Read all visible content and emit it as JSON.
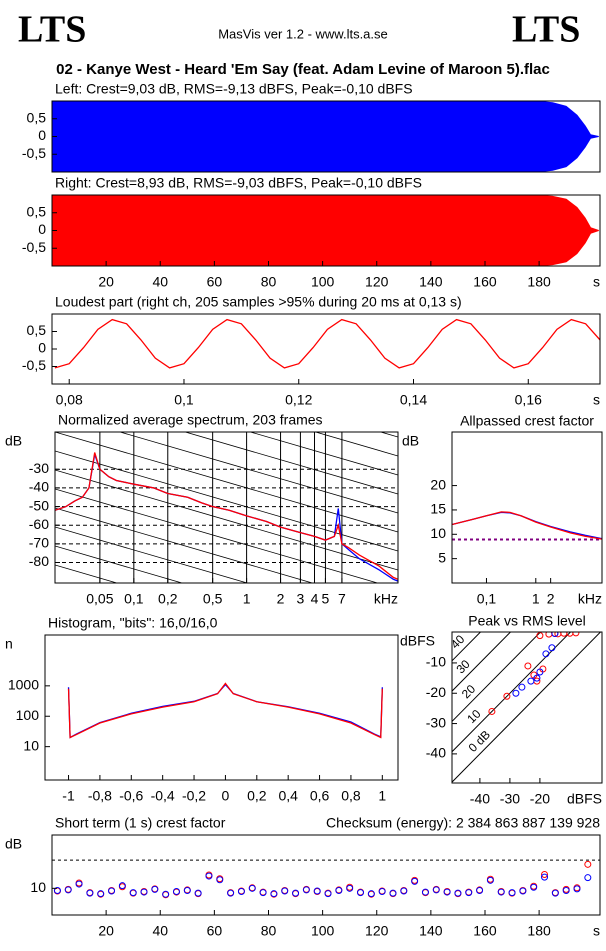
{
  "header": {
    "left_logo": "LTS",
    "right_logo": "LTS",
    "app": "MasVis ver 1.2 - www.lts.a.se",
    "file": "02 - Kanye West - Heard 'Em Say (feat. Adam Levine of Maroon 5).flac"
  },
  "chart_data": [
    {
      "type": "area",
      "title": "Left: Crest=9,03 dB, RMS=-9,13 dBFS, Peak=-0,10 dBFS",
      "x": [
        0,
        180,
        185,
        190,
        194,
        197,
        199,
        202
      ],
      "series": [
        {
          "color": "#0000ff",
          "values": [
            0.99,
            0.99,
            0.95,
            0.85,
            0.6,
            0.3,
            0.05,
            0
          ]
        }
      ],
      "xlim": [
        0,
        202.5
      ],
      "ylim": [
        -1,
        1
      ],
      "yticks": [
        {
          "value": 0.5,
          "label": "0,5"
        },
        0,
        {
          "value": -0.5,
          "label": "-0,5"
        }
      ]
    },
    {
      "type": "area",
      "title": "Right: Crest=8,93 dB, RMS=-9,03 dBFS, Peak=-0,10 dBFS",
      "x": [
        0,
        180,
        185,
        190,
        194,
        197,
        199,
        202
      ],
      "series": [
        {
          "color": "#ff0000",
          "values": [
            0.99,
            0.99,
            0.96,
            0.88,
            0.65,
            0.35,
            0.08,
            0
          ]
        }
      ],
      "xlim": [
        0,
        202.5
      ],
      "ylim": [
        -1,
        1
      ],
      "yticks": [
        {
          "value": 0.5,
          "label": "0,5"
        },
        0,
        {
          "value": -0.5,
          "label": "-0,5"
        }
      ],
      "xticks": [
        20,
        40,
        60,
        80,
        100,
        120,
        140,
        160,
        180
      ],
      "x_unit": "s"
    },
    {
      "type": "line",
      "title": "Loudest part (right ch, 205 samples >95% during 20 ms at 0,13 s)",
      "x": [
        0.0775,
        0.08,
        0.0825,
        0.085,
        0.0875,
        0.09,
        0.0925,
        0.095,
        0.0975,
        0.1,
        0.1025,
        0.105,
        0.1075,
        0.11,
        0.1125,
        0.115,
        0.1175,
        0.12,
        0.1225,
        0.125,
        0.1275,
        0.13,
        0.1325,
        0.135,
        0.1375,
        0.14,
        0.1425,
        0.145,
        0.1475,
        0.15,
        0.1525,
        0.155,
        0.1575,
        0.16,
        0.1625,
        0.165,
        0.1675,
        0.17,
        0.1725
      ],
      "series": [
        {
          "color": "#ff0000",
          "values": [
            -0.54,
            -0.42,
            0.04,
            0.56,
            0.84,
            0.72,
            0.26,
            -0.26,
            -0.54,
            -0.42,
            0.04,
            0.56,
            0.84,
            0.72,
            0.26,
            -0.26,
            -0.54,
            -0.42,
            0.04,
            0.56,
            0.84,
            0.72,
            0.26,
            -0.26,
            -0.54,
            -0.42,
            0.04,
            0.56,
            0.84,
            0.72,
            0.26,
            -0.26,
            -0.54,
            -0.42,
            0.04,
            0.56,
            0.84,
            0.72,
            0.26
          ]
        }
      ],
      "xlim": [
        0.077,
        0.1725
      ],
      "ylim": [
        -1,
        1
      ],
      "yticks": [
        {
          "value": 0.5,
          "label": "0,5"
        },
        0,
        {
          "value": -0.5,
          "label": "-0,5"
        }
      ],
      "xticks": [
        {
          "value": 0.08,
          "label": "0,08"
        },
        {
          "value": 0.1,
          "label": "0,1"
        },
        {
          "value": 0.12,
          "label": "0,12"
        },
        {
          "value": 0.14,
          "label": "0,14"
        },
        {
          "value": 0.16,
          "label": "0,16"
        }
      ],
      "x_unit": "s"
    },
    {
      "type": "line",
      "title": "Normalized average spectrum, 203 frames",
      "xlog": true,
      "grid": true,
      "x": [
        0.02,
        0.025,
        0.03,
        0.035,
        0.04,
        0.045,
        0.05,
        0.06,
        0.07,
        0.1,
        0.15,
        0.2,
        0.3,
        0.4,
        0.5,
        0.7,
        1,
        1.5,
        2,
        3,
        4,
        5,
        6,
        6.5,
        7,
        8,
        10,
        15,
        20,
        22
      ],
      "series": [
        {
          "color": "#0000ff",
          "values": [
            -52,
            -50,
            -47,
            -45,
            -40,
            -22,
            -30,
            -34,
            -36,
            -38,
            -40,
            -43,
            -45,
            -48,
            -50,
            -52,
            -55,
            -58,
            -61,
            -64,
            -66,
            -68,
            -66,
            -51,
            -70,
            -73,
            -78,
            -84,
            -89,
            -90
          ]
        },
        {
          "color": "#ff0000",
          "values": [
            -52,
            -50,
            -47,
            -45,
            -40,
            -21,
            -30,
            -34,
            -36,
            -38,
            -40,
            -43,
            -45,
            -48,
            -50,
            -52,
            -55,
            -58,
            -61,
            -64,
            -66,
            -68,
            -66,
            -60,
            -70,
            -72,
            -76,
            -82,
            -88,
            -89
          ]
        }
      ],
      "xlim": [
        0.02,
        22
      ],
      "ylim": [
        -91,
        -10
      ],
      "yticks": [
        -30,
        -40,
        -50,
        -60,
        -70,
        -80
      ],
      "xticks": [
        {
          "value": 0.05,
          "label": "0,05"
        },
        {
          "value": 0.1,
          "label": "0,1"
        },
        {
          "value": 0.2,
          "label": "0,2"
        },
        {
          "value": 0.5,
          "label": "0,5"
        },
        1,
        2,
        3,
        4,
        5,
        7
      ],
      "y_label": "dB",
      "x_unit": "kHz"
    },
    {
      "type": "line",
      "title": "Allpassed crest factor",
      "xlog": true,
      "x": [
        0.02,
        0.05,
        0.1,
        0.2,
        0.3,
        0.5,
        1,
        2,
        5,
        10,
        22
      ],
      "series": [
        {
          "color": "#0000ff",
          "values": [
            12,
            13,
            13.8,
            14.5,
            14.4,
            13.8,
            12.6,
            11.6,
            10.5,
            9.8,
            9.1
          ]
        },
        {
          "color": "#ff0000",
          "values": [
            12,
            13,
            13.8,
            14.6,
            14.5,
            13.8,
            12.5,
            11.5,
            10.3,
            9.6,
            9
          ]
        }
      ],
      "reference_line": 8.93,
      "xlim": [
        0.02,
        22
      ],
      "ylim": [
        0,
        31
      ],
      "yticks": [
        5,
        10,
        15,
        20
      ],
      "xticks": [
        {
          "value": 0.1,
          "label": "0,1"
        },
        1,
        2
      ],
      "y_label": "dB",
      "x_unit": "kHz"
    },
    {
      "type": "line",
      "title": "Histogram, \"bits\": 16,0/16,0",
      "ylog": true,
      "x": [
        -1,
        -0.99,
        -0.95,
        -0.8,
        -0.6,
        -0.4,
        -0.2,
        -0.05,
        0,
        0.05,
        0.2,
        0.4,
        0.6,
        0.8,
        0.95,
        0.99,
        1
      ],
      "series": [
        {
          "color": "#0000ff",
          "values": [
            900,
            20,
            26,
            62,
            125,
            210,
            310,
            560,
            1100,
            560,
            300,
            205,
            125,
            65,
            26,
            21,
            900
          ]
        },
        {
          "color": "#ff0000",
          "values": [
            800,
            20,
            25,
            60,
            120,
            200,
            300,
            550,
            1200,
            550,
            300,
            200,
            120,
            60,
            25,
            20,
            800
          ]
        }
      ],
      "xlim": [
        -1.15,
        1.1
      ],
      "ylim": [
        0.8,
        47000
      ],
      "yticks": [
        10,
        100,
        1000
      ],
      "xticks": [
        -1,
        {
          "value": -0.8,
          "label": "-0,8"
        },
        {
          "value": -0.6,
          "label": "-0,6"
        },
        {
          "value": -0.4,
          "label": "-0,4"
        },
        {
          "value": -0.2,
          "label": "-0,2"
        },
        0,
        {
          "value": 0.2,
          "label": "0,2"
        },
        {
          "value": 0.4,
          "label": "0,4"
        },
        {
          "value": 0.6,
          "label": "0,6"
        },
        {
          "value": 0.8,
          "label": "0,8"
        },
        1
      ],
      "y_label": "n"
    },
    {
      "type": "scatter",
      "title": "Peak vs RMS level",
      "series": [
        {
          "color": "#ff0000",
          "x": [
            -36,
            -31,
            -24,
            -21,
            -19,
            -17,
            -15,
            -14,
            -12,
            -10,
            -8,
            -22,
            -20
          ],
          "values": [
            -26,
            -21,
            -11,
            -16,
            -12,
            -0.5,
            -0.3,
            -0.4,
            -0.2,
            -0.2,
            -0.1,
            -14,
            -1
          ]
        },
        {
          "color": "#0000ff",
          "x": [
            -28,
            -26,
            -23,
            -21,
            -20,
            -18,
            -16,
            -15
          ],
          "values": [
            -20,
            -18,
            -16,
            -15,
            -13,
            -7,
            -5,
            -0.3
          ]
        }
      ],
      "diagonals": [
        {
          "offset": 0,
          "label": "0 dB"
        },
        {
          "offset": 10,
          "label": "10"
        },
        {
          "offset": 20,
          "label": "20"
        },
        {
          "offset": 30,
          "label": "30"
        },
        {
          "offset": 40,
          "label": "40"
        }
      ],
      "xlim": [
        -49.3,
        0.7
      ],
      "ylim": [
        -49.6,
        0.2
      ],
      "xticks": [
        -40,
        -30,
        -20
      ],
      "yticks": [
        -10,
        -20,
        -30,
        -40
      ],
      "x_unit": "dBFS",
      "y_label": "dBFS"
    },
    {
      "type": "scatter",
      "title": "Short term (1 s) crest factor",
      "checksum": "Checksum (energy):  2 384 863 887 139 928",
      "x": [
        2,
        6,
        10,
        14,
        18,
        22,
        26,
        30,
        34,
        38,
        42,
        46,
        50,
        54,
        58,
        62,
        66,
        70,
        74,
        78,
        82,
        86,
        90,
        94,
        98,
        102,
        106,
        110,
        114,
        118,
        122,
        126,
        130,
        134,
        138,
        142,
        146,
        150,
        154,
        158,
        162,
        166,
        170,
        174,
        178,
        182,
        186,
        190,
        194,
        198
      ],
      "series": [
        {
          "color": "#ff0000",
          "values": [
            9.5,
            9.8,
            11,
            9.2,
            8.9,
            9.6,
            10.3,
            9.1,
            9.4,
            9.9,
            8.8,
            9.3,
            9.7,
            9.0,
            12.5,
            11.8,
            9.2,
            9.5,
            10.1,
            9.3,
            8.9,
            9.6,
            9.0,
            9.8,
            9.4,
            9.1,
            9.7,
            10.2,
            9.3,
            8.9,
            9.5,
            9.0,
            9.6,
            11.5,
            9.2,
            9.8,
            9.4,
            9.0,
            9.3,
            9.7,
            11.7,
            9.4,
            9.1,
            9.6,
            10.4,
            12.6,
            9.2,
            9.8,
            10.1,
            14.5
          ]
        },
        {
          "color": "#0000ff",
          "values": [
            9.6,
            9.7,
            10.8,
            9.1,
            9.0,
            9.5,
            10.5,
            9.2,
            9.3,
            9.8,
            8.9,
            9.4,
            9.6,
            9.1,
            12.3,
            11.6,
            9.1,
            9.4,
            10.0,
            9.2,
            9.0,
            9.5,
            9.1,
            9.7,
            9.5,
            9.0,
            9.6,
            10.0,
            9.2,
            9.0,
            9.4,
            9.1,
            9.5,
            11.3,
            9.3,
            9.7,
            9.3,
            9.1,
            9.2,
            9.6,
            11.5,
            9.3,
            9.2,
            9.5,
            10.2,
            12.1,
            9.1,
            9.6,
            9.9,
            12.0
          ]
        }
      ],
      "reference_line": 15.3,
      "xlim": [
        0,
        202.5
      ],
      "ylim": [
        5,
        20
      ],
      "yticks": [
        10
      ],
      "xticks": [
        20,
        40,
        60,
        80,
        100,
        120,
        140,
        160,
        180
      ],
      "x_unit": "s",
      "y_label": "dB"
    }
  ]
}
